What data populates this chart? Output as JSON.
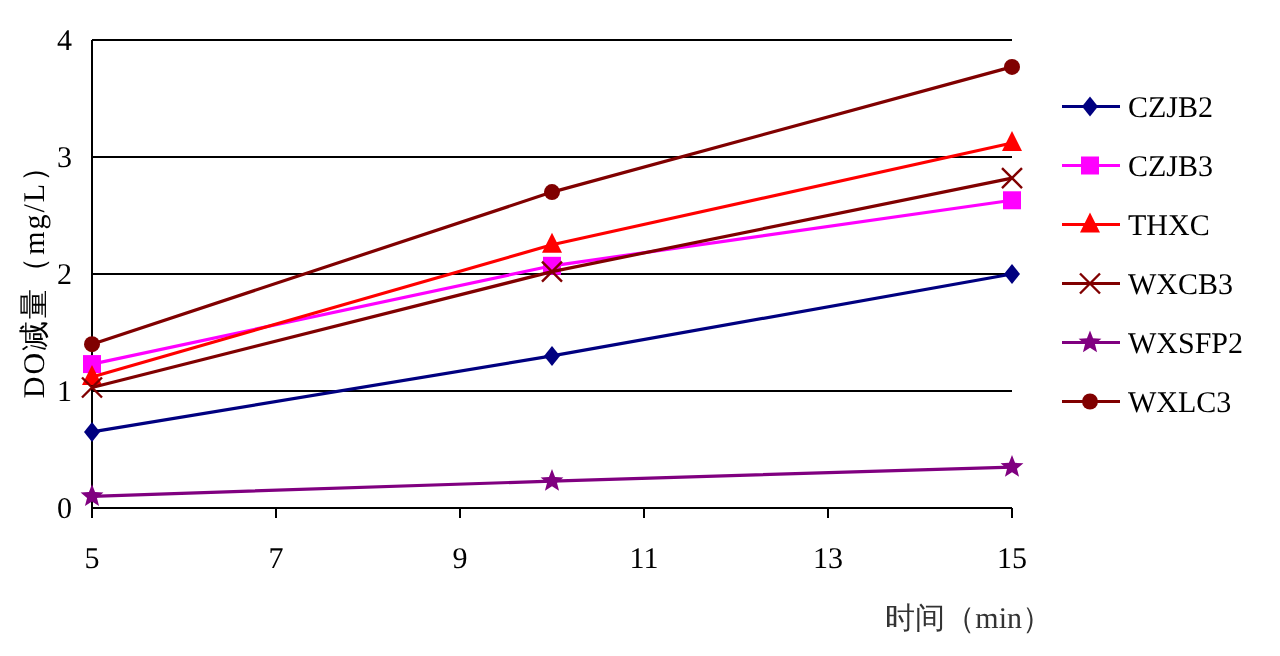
{
  "chart_data": {
    "type": "line",
    "xlabel": "时间（min）",
    "ylabel": "DO减量（mg/L）",
    "x": [
      5,
      10,
      15
    ],
    "xlim": [
      5,
      15
    ],
    "xticks": [
      5,
      7,
      9,
      11,
      13,
      15
    ],
    "ylim": [
      0,
      4
    ],
    "yticks": [
      0,
      1,
      2,
      3,
      4
    ],
    "grid": "y",
    "legend": "right",
    "series": [
      {
        "name": "CZJB2",
        "color": "#000080",
        "marker": "diamond",
        "values": [
          0.65,
          1.3,
          2.0
        ]
      },
      {
        "name": "CZJB3",
        "color": "#ff00ff",
        "marker": "square",
        "values": [
          1.23,
          2.07,
          2.63
        ]
      },
      {
        "name": "THXC",
        "color": "#ff0000",
        "marker": "triangle",
        "values": [
          1.12,
          2.25,
          3.12
        ]
      },
      {
        "name": "WXCB3",
        "color": "#800000",
        "marker": "cross",
        "values": [
          1.03,
          2.02,
          2.82
        ]
      },
      {
        "name": "WXSFP2",
        "color": "#800080",
        "marker": "star",
        "values": [
          0.1,
          0.23,
          0.35
        ]
      },
      {
        "name": "WXLC3",
        "color": "#800000",
        "marker": "circle",
        "values": [
          1.4,
          2.7,
          3.77
        ]
      }
    ]
  }
}
